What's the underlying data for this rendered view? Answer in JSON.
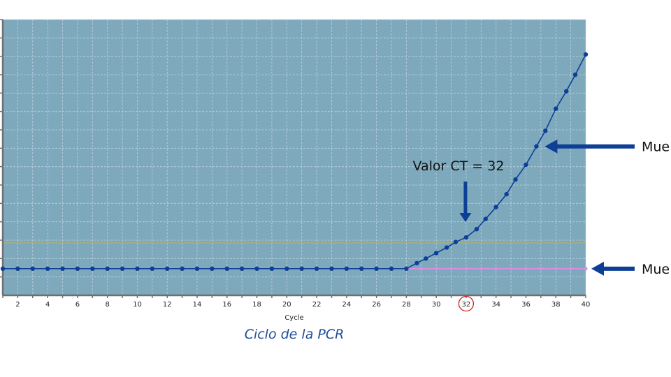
{
  "chart_data": {
    "type": "line",
    "xlabel": "Cycle",
    "caption": "Ciclo de la PCR",
    "xlim": [
      1,
      40
    ],
    "ylim": [
      0,
      15
    ],
    "x_ticks": [
      2,
      4,
      6,
      8,
      10,
      12,
      14,
      16,
      18,
      20,
      22,
      24,
      26,
      28,
      30,
      32,
      34,
      36,
      38,
      40
    ],
    "grid": true,
    "threshold": 2.85,
    "series": [
      {
        "name": "Mue",
        "color": "#0d3f96",
        "x": [
          1,
          2,
          3,
          4,
          5,
          6,
          7,
          8,
          9,
          10,
          11,
          12,
          13,
          14,
          15,
          16,
          17,
          18,
          19,
          20,
          21,
          22,
          23,
          24,
          25,
          26,
          27,
          28,
          28.7,
          29.3,
          30,
          30.7,
          31.3,
          32,
          32.7,
          33.3,
          34,
          34.7,
          35.3,
          36,
          36.7,
          37.3,
          38,
          38.7,
          39.3,
          40
        ],
        "values": [
          1.45,
          1.45,
          1.45,
          1.45,
          1.45,
          1.45,
          1.45,
          1.45,
          1.45,
          1.45,
          1.45,
          1.45,
          1.45,
          1.45,
          1.45,
          1.45,
          1.45,
          1.45,
          1.45,
          1.45,
          1.45,
          1.45,
          1.45,
          1.45,
          1.45,
          1.45,
          1.45,
          1.45,
          1.75,
          2.0,
          2.3,
          2.6,
          2.9,
          3.15,
          3.6,
          4.15,
          4.8,
          5.5,
          6.3,
          7.1,
          8.1,
          8.95,
          10.15,
          11.1,
          12.0,
          13.1
        ]
      },
      {
        "name": "Mue",
        "color": "#d98ee0",
        "x": [
          1,
          2,
          3,
          4,
          5,
          6,
          7,
          8,
          9,
          10,
          11,
          12,
          13,
          14,
          15,
          16,
          17,
          18,
          19,
          20,
          21,
          22,
          23,
          24,
          25,
          26,
          27,
          28,
          29,
          30,
          31,
          32,
          33,
          34,
          35,
          36,
          37,
          38,
          39,
          40
        ],
        "values": [
          1.45,
          1.45,
          1.45,
          1.45,
          1.45,
          1.45,
          1.45,
          1.45,
          1.45,
          1.45,
          1.45,
          1.45,
          1.45,
          1.45,
          1.45,
          1.45,
          1.45,
          1.45,
          1.45,
          1.45,
          1.45,
          1.45,
          1.45,
          1.45,
          1.45,
          1.45,
          1.45,
          1.45,
          1.45,
          1.45,
          1.45,
          1.45,
          1.45,
          1.45,
          1.45,
          1.45,
          1.45,
          1.45,
          1.45,
          1.45
        ]
      }
    ],
    "annotations": {
      "ct_label": "Valor CT = 32",
      "ct_cycle": 32,
      "ct_value": 3.15,
      "positive_label": "Mue",
      "positive_point": [
        36.7,
        8.1
      ],
      "negative_label": "Mue",
      "negative_point": [
        40,
        1.45
      ]
    }
  },
  "colors": {
    "plot_background": "#7ea9bd",
    "grid": "#b9d0dc",
    "axis": "#6f6f6f",
    "threshold_line": "#b0ad72",
    "arrow": "#0d3f96",
    "caption": "#1f4e99",
    "ct_circle": "#d42020"
  }
}
